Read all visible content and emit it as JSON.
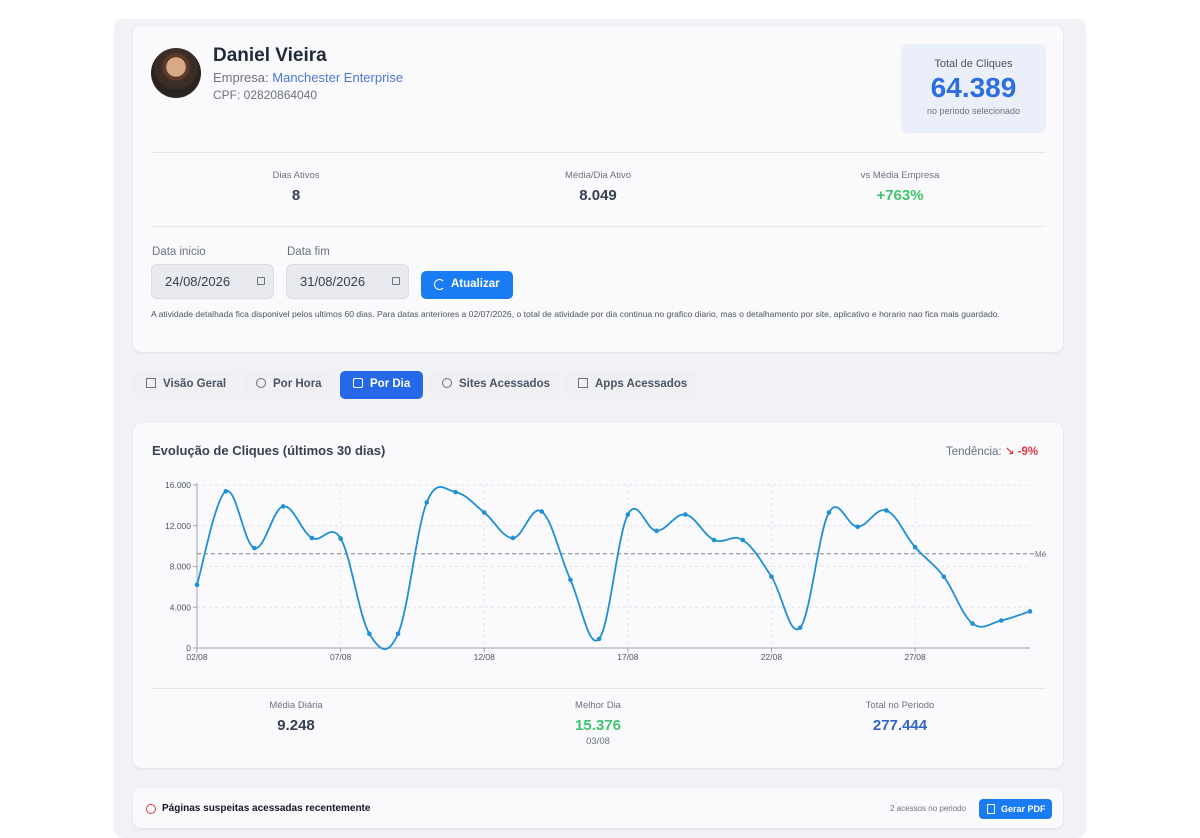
{
  "profile": {
    "name": "Daniel Vieira",
    "company_label": "Empresa:",
    "company": "Manchester Enterprise",
    "cpf": "CPF: 02820864040",
    "total_label": "Total de Cliques",
    "total_value": "64.389",
    "total_sub": "no periodo selecionado"
  },
  "stats": [
    {
      "label": "Dias Ativos",
      "value": "8"
    },
    {
      "label": "Média/Dia Ativo",
      "value": "8.049"
    },
    {
      "label": "vs Média Empresa",
      "value": "+763%"
    }
  ],
  "filters": {
    "start_label": "Data inicio",
    "start_value": "24/08/2026",
    "end_label": "Data fim",
    "end_value": "31/08/2026",
    "update_label": "Atualizar",
    "note": "A atividade detalhada fica disponivel pelos ultimos 60 dias. Para datas anteriores a 02/07/2026, o total de atividade por dia continua no grafico diario, mas o detalhamento por site, aplicativo e horario nao fica mais guardado."
  },
  "tabs": [
    {
      "label": "Visão Geral",
      "icon": "bar-chart-icon"
    },
    {
      "label": "Por Hora",
      "icon": "clock-icon"
    },
    {
      "label": "Por Dia",
      "icon": "calendar-icon",
      "active": true
    },
    {
      "label": "Sites Acessados",
      "icon": "globe-icon"
    },
    {
      "label": "Apps Acessados",
      "icon": "monitor-icon"
    }
  ],
  "chart_card": {
    "title": "Evolução de Cliques (últimos 30 dias)",
    "trend_label": "Tendência:",
    "trend_value": "-9%"
  },
  "summary": [
    {
      "label": "Média Diária",
      "value": "9.248"
    },
    {
      "label": "Melhor Dia",
      "value": "15.376",
      "sub": "03/08"
    },
    {
      "label": "Total no Periodo",
      "value": "277.444"
    }
  ],
  "suspect": {
    "title": "Páginas suspeitas acessadas recentemente",
    "count": "2 acessos no periodo",
    "pdf_label": "Gerar PDF"
  },
  "colors": {
    "accent": "#1a7cf2",
    "line": "#1f8fd8",
    "positive": "#3ec46d",
    "negative": "#e0383e"
  },
  "chart_data": {
    "type": "line",
    "x": [
      "02/08",
      "03/08",
      "04/08",
      "05/08",
      "06/08",
      "07/08",
      "08/08",
      "09/08",
      "10/08",
      "11/08",
      "12/08",
      "13/08",
      "14/08",
      "15/08",
      "16/08",
      "17/08",
      "18/08",
      "19/08",
      "20/08",
      "21/08",
      "22/08",
      "23/08",
      "24/08",
      "25/08",
      "26/08",
      "27/08",
      "28/08",
      "29/08",
      "30/08",
      "31/08"
    ],
    "xticks": [
      "02/08",
      "07/08",
      "12/08",
      "17/08",
      "22/08",
      "27/08"
    ],
    "values": [
      6200,
      15376,
      9800,
      13900,
      10800,
      10750,
      1400,
      1400,
      14300,
      15300,
      13300,
      10800,
      13400,
      6700,
      900,
      13100,
      11500,
      13100,
      10600,
      10600,
      7000,
      2000,
      13300,
      11900,
      13500,
      9900,
      7000,
      2400,
      2700,
      3600
    ],
    "yticks": [
      "0",
      "4.000",
      "8.000",
      "12.000",
      "16.000"
    ],
    "ylim": [
      0,
      16000
    ],
    "reference_line": {
      "value": 9248,
      "label": "Mé"
    },
    "grid": true
  }
}
